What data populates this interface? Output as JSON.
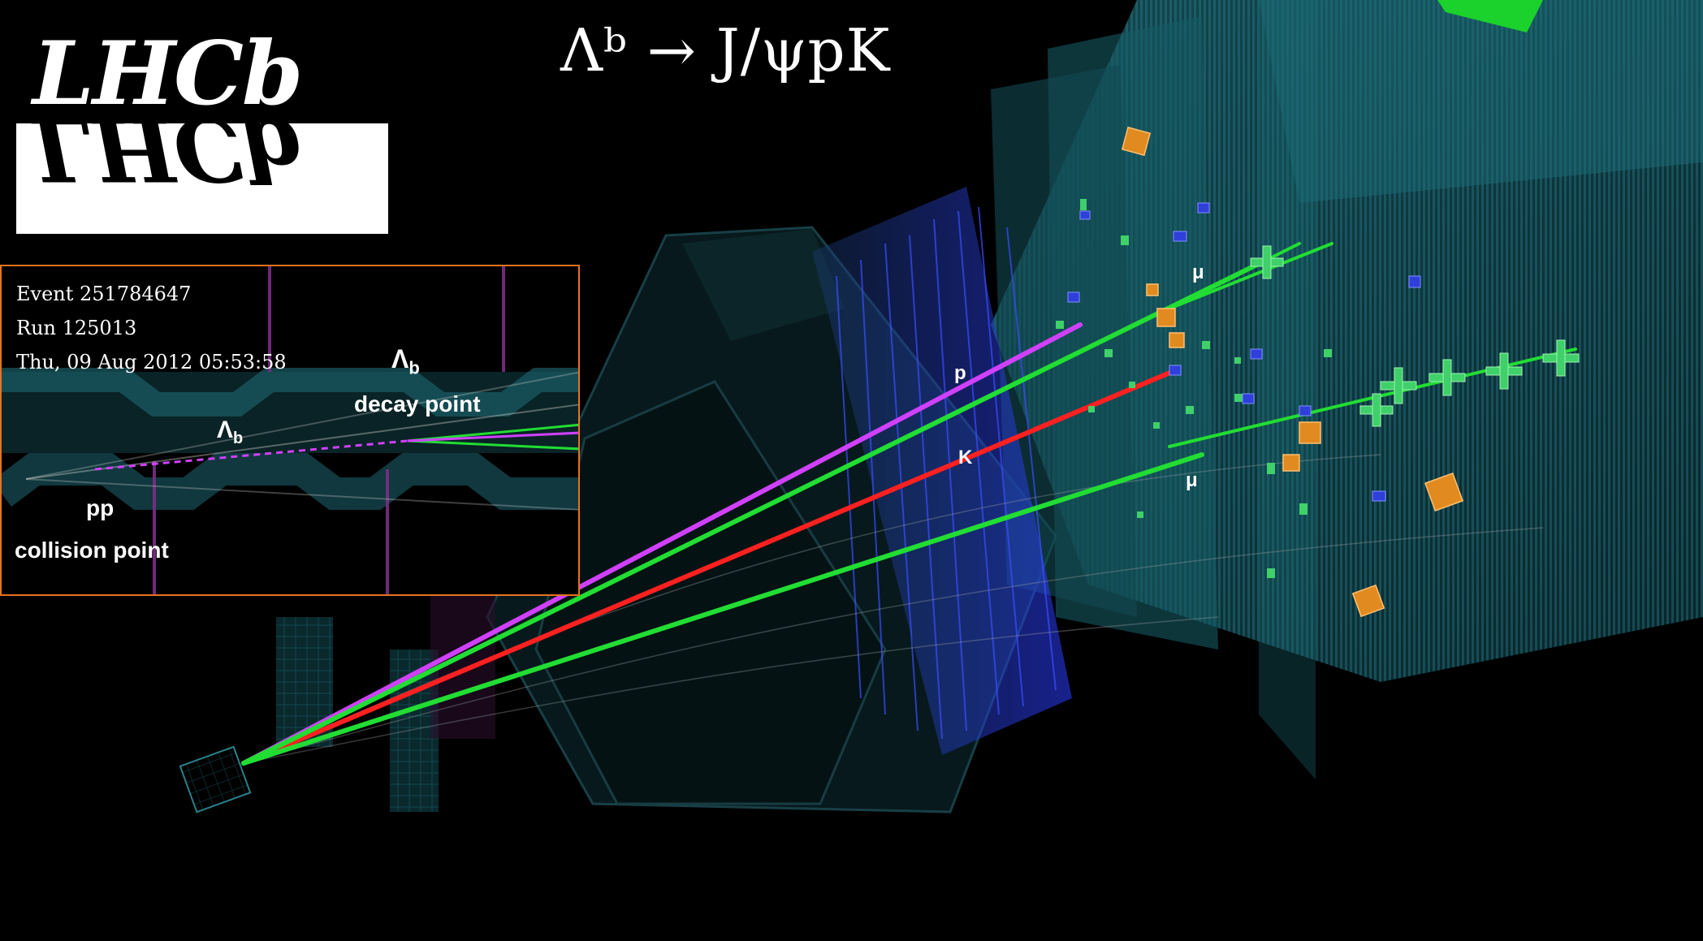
{
  "title": "Λᵇ → J/ψpK",
  "logo": {
    "text": "LHCb",
    "reflection": "LHCb"
  },
  "inset": {
    "event": "Event 251784647",
    "run": "Run 125013",
    "date": "Thu, 09 Aug 2012 05:53:58",
    "lambda_b_label": "Λ",
    "lambda_b_sub": "b",
    "decay_label": "decay point",
    "pp_label": "pp",
    "collision_label": "collision point"
  },
  "track_labels": {
    "mu_top": "μ",
    "p": "p",
    "k": "K",
    "mu_bottom": "μ"
  },
  "colors": {
    "muon_track": "#22dd33",
    "proton_track": "#d040ff",
    "kaon_track": "#ff2020",
    "detector": "#1f6f7a",
    "rich": "#2b3cff",
    "calo": "#e08a20",
    "inset_border": "#e6731e"
  }
}
